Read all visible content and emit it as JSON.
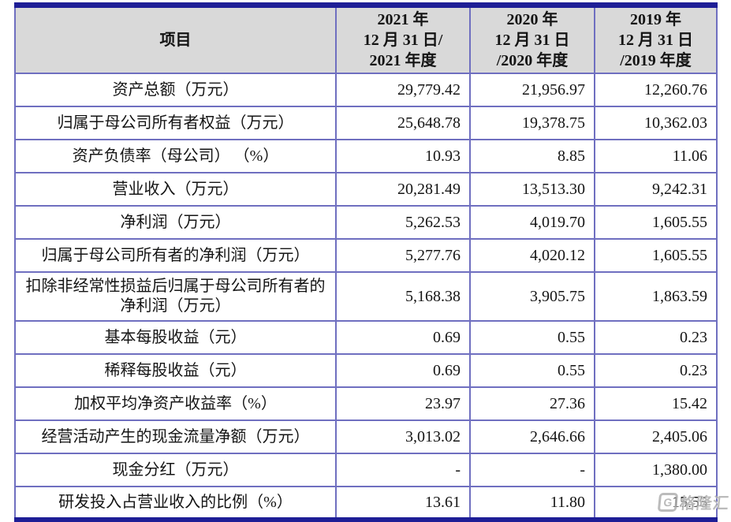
{
  "accent_colors": {
    "outer_border": "#1e1e96",
    "inner_border": "#6f6fc0",
    "header_bg": "#d9d9d9"
  },
  "table": {
    "columns": [
      "项目",
      "2021 年\n12 月 31 日/\n2021 年度",
      "2020 年\n12 月 31 日\n/2020 年度",
      "2019 年\n12 月 31 日\n/2019 年度"
    ],
    "rows": [
      {
        "label": "资产总额（万元）",
        "v2021": "29,779.42",
        "v2020": "21,956.97",
        "v2019": "12,260.76"
      },
      {
        "label": "归属于母公司所有者权益（万元）",
        "v2021": "25,648.78",
        "v2020": "19,378.75",
        "v2019": "10,362.03"
      },
      {
        "label": "资产负债率（母公司） （%）",
        "v2021": "10.93",
        "v2020": "8.85",
        "v2019": "11.06"
      },
      {
        "label": "营业收入（万元）",
        "v2021": "20,281.49",
        "v2020": "13,513.30",
        "v2019": "9,242.31"
      },
      {
        "label": "净利润（万元）",
        "v2021": "5,262.53",
        "v2020": "4,019.70",
        "v2019": "1,605.55"
      },
      {
        "label": "归属于母公司所有者的净利润（万元）",
        "v2021": "5,277.76",
        "v2020": "4,020.12",
        "v2019": "1,605.55"
      },
      {
        "label": "扣除非经常性损益后归属于母公司所有者的净利润（万元）",
        "v2021": "5,168.38",
        "v2020": "3,905.75",
        "v2019": "1,863.59"
      },
      {
        "label": "基本每股收益（元）",
        "v2021": "0.69",
        "v2020": "0.55",
        "v2019": "0.23"
      },
      {
        "label": "稀释每股收益（元）",
        "v2021": "0.69",
        "v2020": "0.55",
        "v2019": "0.23"
      },
      {
        "label": "加权平均净资产收益率（%）",
        "v2021": "23.97",
        "v2020": "27.36",
        "v2019": "15.42"
      },
      {
        "label": "经营活动产生的现金流量净额（万元）",
        "v2021": "3,013.02",
        "v2020": "2,646.66",
        "v2019": "2,405.06"
      },
      {
        "label": "现金分红（万元）",
        "v2021": "-",
        "v2020": "-",
        "v2019": "1,380.00"
      },
      {
        "label": "研发投入占营业收入的比例（%）",
        "v2021": "13.61",
        "v2020": "11.80",
        "v2019": "15.55"
      }
    ]
  },
  "watermark": {
    "icon_letter": "G",
    "text": "格隆汇"
  }
}
